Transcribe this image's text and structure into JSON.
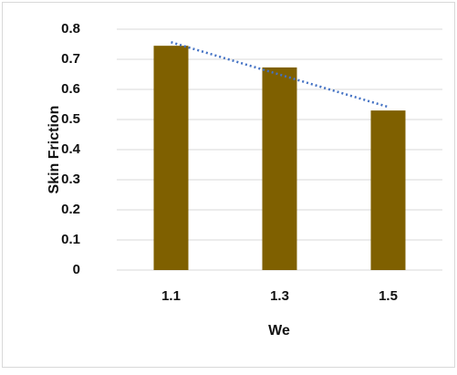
{
  "chart_data": {
    "type": "bar",
    "x_label": "We",
    "y_label": "Skin Friction",
    "categories": [
      "1.1",
      "1.3",
      "1.5"
    ],
    "values": [
      0.745,
      0.673,
      0.53
    ],
    "color": "#7f6000",
    "ylim": [
      0,
      0.8
    ],
    "yticks": [
      0,
      0.1,
      0.2,
      0.3,
      0.4,
      0.5,
      0.6,
      0.7,
      0.8
    ],
    "grid": true,
    "trendline": {
      "type": "linear",
      "color": "#4472c4"
    }
  }
}
